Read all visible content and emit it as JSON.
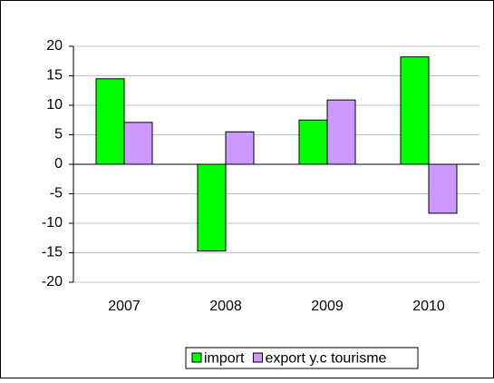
{
  "chart_data": {
    "type": "bar",
    "categories": [
      "2007",
      "2008",
      "2009",
      "2010"
    ],
    "series": [
      {
        "name": "import",
        "color": "#00ff00",
        "values": [
          14.5,
          -14.7,
          7.5,
          18.2
        ]
      },
      {
        "name": "export y.c tourisme",
        "color": "#cc99ff",
        "values": [
          7.1,
          5.5,
          10.9,
          -8.3
        ]
      }
    ],
    "ylim": [
      -20,
      20
    ],
    "yticks": [
      -20,
      -15,
      -10,
      -5,
      0,
      5,
      10,
      15,
      20
    ],
    "grid": true,
    "legend": "bottom"
  }
}
